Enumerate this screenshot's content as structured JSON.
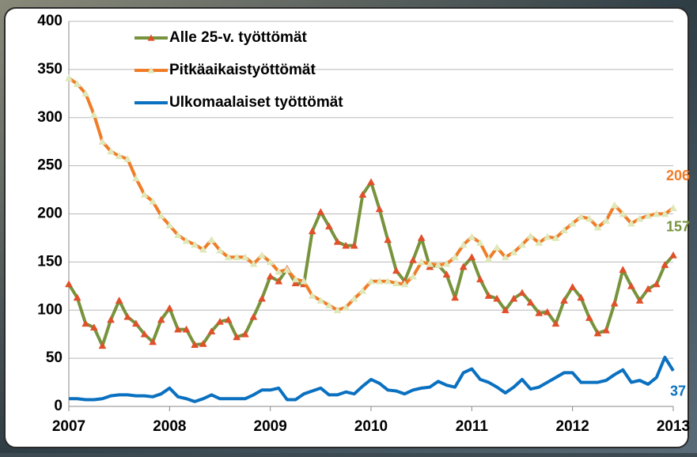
{
  "chart_data": {
    "type": "line",
    "categories": [
      "2007",
      null,
      null,
      null,
      null,
      null,
      null,
      null,
      null,
      null,
      null,
      null,
      "2008",
      null,
      null,
      null,
      null,
      null,
      null,
      null,
      null,
      null,
      null,
      null,
      "2009",
      null,
      null,
      null,
      null,
      null,
      null,
      null,
      null,
      null,
      null,
      null,
      "2010",
      null,
      null,
      null,
      null,
      null,
      null,
      null,
      null,
      null,
      null,
      null,
      "2011",
      null,
      null,
      null,
      null,
      null,
      null,
      null,
      null,
      null,
      null,
      null,
      "2012",
      null,
      null,
      null,
      null,
      null,
      null,
      null,
      null,
      null,
      null,
      null,
      "2013"
    ],
    "series": [
      {
        "name": "Alle 25-v. työttömät",
        "color": "#77933c",
        "marker": "triangle",
        "marker_color": "#e0502a",
        "values": [
          127,
          113,
          86,
          82,
          63,
          90,
          110,
          93,
          86,
          75,
          67,
          90,
          102,
          80,
          80,
          64,
          65,
          78,
          88,
          90,
          72,
          75,
          93,
          112,
          135,
          130,
          143,
          128,
          127,
          182,
          202,
          187,
          171,
          167,
          167,
          220,
          233,
          205,
          173,
          141,
          130,
          152,
          175,
          145,
          147,
          137,
          113,
          145,
          155,
          132,
          115,
          112,
          100,
          112,
          118,
          108,
          97,
          98,
          86,
          110,
          124,
          113,
          92,
          76,
          79,
          107,
          142,
          125,
          110,
          122,
          127,
          147,
          157
        ]
      },
      {
        "name": "Pitkäaikaistyöttömät",
        "color": "#f07c28",
        "marker": "triangle",
        "marker_color": "#dfe8b8",
        "values": [
          341,
          335,
          325,
          303,
          275,
          265,
          260,
          257,
          237,
          220,
          213,
          198,
          188,
          178,
          172,
          168,
          163,
          173,
          162,
          155,
          155,
          155,
          148,
          157,
          150,
          140,
          142,
          132,
          130,
          115,
          110,
          105,
          100,
          103,
          112,
          120,
          130,
          130,
          130,
          128,
          127,
          135,
          150,
          148,
          147,
          148,
          155,
          168,
          176,
          170,
          153,
          165,
          155,
          160,
          168,
          177,
          170,
          176,
          175,
          183,
          190,
          197,
          195,
          186,
          193,
          209,
          200,
          190,
          195,
          198,
          200,
          200,
          206
        ]
      },
      {
        "name": "Ulkomaalaiset työttömät",
        "color": "#0a70c0",
        "marker": "none",
        "values": [
          8,
          8,
          7,
          7,
          8,
          11,
          12,
          12,
          11,
          11,
          10,
          13,
          19,
          10,
          8,
          5,
          8,
          12,
          8,
          8,
          8,
          8,
          12,
          17,
          17,
          19,
          7,
          7,
          13,
          16,
          19,
          12,
          12,
          15,
          13,
          21,
          28,
          24,
          17,
          16,
          13,
          17,
          19,
          20,
          26,
          22,
          20,
          35,
          39,
          28,
          25,
          20,
          14,
          20,
          28,
          18,
          20,
          25,
          30,
          35,
          35,
          25,
          25,
          25,
          27,
          33,
          38,
          25,
          27,
          23,
          30,
          51,
          37
        ]
      }
    ],
    "ylim": [
      0,
      400
    ],
    "yticks": [
      0,
      50,
      100,
      150,
      200,
      250,
      300,
      350,
      400
    ],
    "grid": true,
    "legend": "top-left"
  }
}
